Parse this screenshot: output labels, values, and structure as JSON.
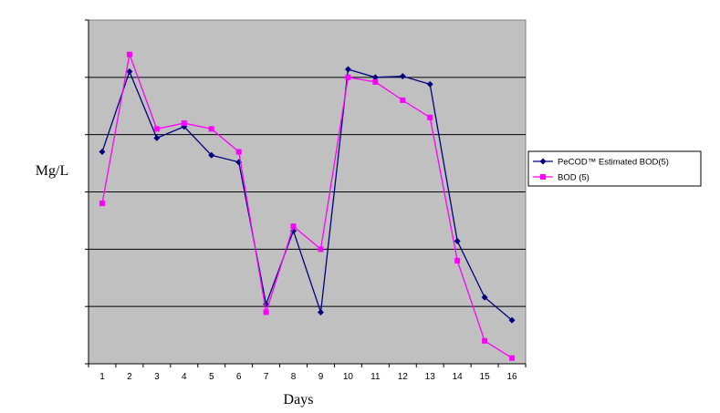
{
  "chart_data": {
    "type": "line",
    "title": "",
    "xlabel": "Days",
    "ylabel": "Mg/L",
    "x": [
      "1",
      "2",
      "3",
      "4",
      "5",
      "6",
      "7",
      "8",
      "9",
      "10",
      "11",
      "12",
      "13",
      "14",
      "15",
      "16"
    ],
    "ylim": [
      0,
      300
    ],
    "yticks_printed": false,
    "grid": "horizontal",
    "plot_background": "#c0c0c0",
    "legend_position": "right",
    "series": [
      {
        "name": "PeCOD™ Estimated BOD(5)",
        "color": "#000080",
        "marker": "diamond",
        "values": [
          185,
          255,
          197,
          207,
          182,
          176,
          52,
          116,
          45,
          257,
          250,
          251,
          244,
          107,
          58,
          38
        ]
      },
      {
        "name": "BOD (5)",
        "color": "#ff00ff",
        "marker": "square",
        "values": [
          140,
          270,
          205,
          210,
          205,
          185,
          45,
          120,
          100,
          250,
          246,
          230,
          215,
          90,
          20,
          5
        ]
      }
    ]
  }
}
